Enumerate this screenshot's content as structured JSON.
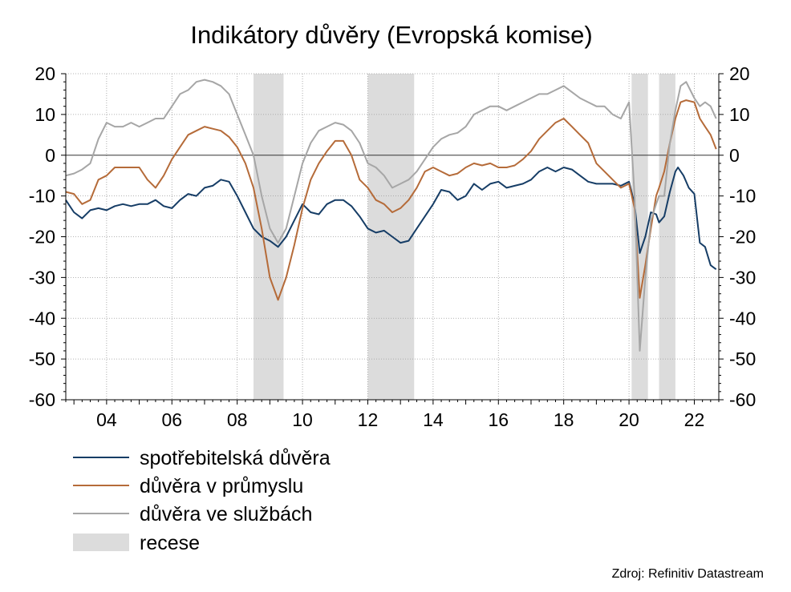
{
  "chart_data": {
    "type": "line",
    "title": "Indikátory důvěry (Evropská komise)",
    "source": "Zdroj: Refinitiv Datastream",
    "xlim": [
      2002.75,
      2022.75
    ],
    "ylim": [
      -60,
      20
    ],
    "yticks": [
      20,
      10,
      0,
      -10,
      -20,
      -30,
      -40,
      -50,
      -60
    ],
    "ytick_labels": [
      "20",
      "10",
      "0",
      "-10",
      "-20",
      "-30",
      "-40",
      "-50",
      "-60"
    ],
    "xticks": [
      2004,
      2006,
      2008,
      2010,
      2012,
      2014,
      2016,
      2018,
      2020,
      2022
    ],
    "xtick_labels": [
      "04",
      "06",
      "08",
      "10",
      "12",
      "14",
      "16",
      "18",
      "20",
      "22"
    ],
    "grid": true,
    "legend_position": "bottom-left",
    "recessions": [
      {
        "start": 2008.5,
        "end": 2009.42
      },
      {
        "start": 2012.0,
        "end": 2013.42
      },
      {
        "start": 2020.08,
        "end": 2020.58
      },
      {
        "start": 2020.92,
        "end": 2021.42
      }
    ],
    "series": [
      {
        "name": "spotřebitelská důvěra",
        "color": "#163d66",
        "points": [
          [
            2002.75,
            -11
          ],
          [
            2003.0,
            -14
          ],
          [
            2003.25,
            -15.5
          ],
          [
            2003.5,
            -13.5
          ],
          [
            2003.75,
            -13
          ],
          [
            2004.0,
            -13.5
          ],
          [
            2004.25,
            -12.5
          ],
          [
            2004.5,
            -12
          ],
          [
            2004.75,
            -12.5
          ],
          [
            2005.0,
            -12
          ],
          [
            2005.25,
            -12
          ],
          [
            2005.5,
            -11
          ],
          [
            2005.75,
            -12.5
          ],
          [
            2006.0,
            -13
          ],
          [
            2006.25,
            -11
          ],
          [
            2006.5,
            -9.5
          ],
          [
            2006.75,
            -10
          ],
          [
            2007.0,
            -8
          ],
          [
            2007.25,
            -7.5
          ],
          [
            2007.5,
            -6
          ],
          [
            2007.75,
            -6.5
          ],
          [
            2008.0,
            -10
          ],
          [
            2008.25,
            -14
          ],
          [
            2008.5,
            -18
          ],
          [
            2008.75,
            -20
          ],
          [
            2009.0,
            -21
          ],
          [
            2009.25,
            -22.5
          ],
          [
            2009.5,
            -20
          ],
          [
            2009.75,
            -16
          ],
          [
            2010.0,
            -12
          ],
          [
            2010.25,
            -14
          ],
          [
            2010.5,
            -14.5
          ],
          [
            2010.75,
            -12
          ],
          [
            2011.0,
            -11
          ],
          [
            2011.25,
            -11
          ],
          [
            2011.5,
            -12.5
          ],
          [
            2011.75,
            -15
          ],
          [
            2012.0,
            -18
          ],
          [
            2012.25,
            -19
          ],
          [
            2012.5,
            -18.5
          ],
          [
            2012.75,
            -20
          ],
          [
            2013.0,
            -21.5
          ],
          [
            2013.25,
            -21
          ],
          [
            2013.5,
            -18
          ],
          [
            2013.75,
            -15
          ],
          [
            2014.0,
            -12
          ],
          [
            2014.25,
            -8.5
          ],
          [
            2014.5,
            -9
          ],
          [
            2014.75,
            -11
          ],
          [
            2015.0,
            -10
          ],
          [
            2015.25,
            -7
          ],
          [
            2015.5,
            -8.5
          ],
          [
            2015.75,
            -7
          ],
          [
            2016.0,
            -6.5
          ],
          [
            2016.25,
            -8
          ],
          [
            2016.5,
            -7.5
          ],
          [
            2016.75,
            -7
          ],
          [
            2017.0,
            -6
          ],
          [
            2017.25,
            -4
          ],
          [
            2017.5,
            -3
          ],
          [
            2017.75,
            -4
          ],
          [
            2018.0,
            -3
          ],
          [
            2018.25,
            -3.5
          ],
          [
            2018.5,
            -5
          ],
          [
            2018.75,
            -6.5
          ],
          [
            2019.0,
            -7
          ],
          [
            2019.25,
            -7
          ],
          [
            2019.5,
            -7
          ],
          [
            2019.75,
            -7.5
          ],
          [
            2020.0,
            -6.5
          ],
          [
            2020.17,
            -12
          ],
          [
            2020.33,
            -24
          ],
          [
            2020.5,
            -20
          ],
          [
            2020.67,
            -14
          ],
          [
            2020.83,
            -14.5
          ],
          [
            2020.92,
            -16.5
          ],
          [
            2021.08,
            -15
          ],
          [
            2021.25,
            -9
          ],
          [
            2021.42,
            -4
          ],
          [
            2021.5,
            -3
          ],
          [
            2021.67,
            -5
          ],
          [
            2021.83,
            -8
          ],
          [
            2022.0,
            -9.5
          ],
          [
            2022.17,
            -21.5
          ],
          [
            2022.33,
            -22.5
          ],
          [
            2022.5,
            -27
          ],
          [
            2022.67,
            -28
          ]
        ]
      },
      {
        "name": "důvěra v průmyslu",
        "color": "#b56b39",
        "points": [
          [
            2002.75,
            -9
          ],
          [
            2003.0,
            -9.5
          ],
          [
            2003.25,
            -12
          ],
          [
            2003.5,
            -11
          ],
          [
            2003.75,
            -6
          ],
          [
            2004.0,
            -5
          ],
          [
            2004.25,
            -3
          ],
          [
            2004.5,
            -3
          ],
          [
            2004.75,
            -3
          ],
          [
            2005.0,
            -3
          ],
          [
            2005.25,
            -6
          ],
          [
            2005.5,
            -8
          ],
          [
            2005.75,
            -5
          ],
          [
            2006.0,
            -1
          ],
          [
            2006.25,
            2
          ],
          [
            2006.5,
            5
          ],
          [
            2006.75,
            6
          ],
          [
            2007.0,
            7
          ],
          [
            2007.25,
            6.5
          ],
          [
            2007.5,
            6
          ],
          [
            2007.75,
            4.5
          ],
          [
            2008.0,
            2
          ],
          [
            2008.25,
            -2
          ],
          [
            2008.5,
            -8
          ],
          [
            2008.75,
            -18
          ],
          [
            2009.0,
            -30
          ],
          [
            2009.25,
            -35.5
          ],
          [
            2009.5,
            -30
          ],
          [
            2009.75,
            -22
          ],
          [
            2010.0,
            -13
          ],
          [
            2010.25,
            -6
          ],
          [
            2010.5,
            -2
          ],
          [
            2010.75,
            1
          ],
          [
            2011.0,
            3.5
          ],
          [
            2011.25,
            3.5
          ],
          [
            2011.5,
            0
          ],
          [
            2011.75,
            -6
          ],
          [
            2012.0,
            -8
          ],
          [
            2012.25,
            -11
          ],
          [
            2012.5,
            -12
          ],
          [
            2012.75,
            -14
          ],
          [
            2013.0,
            -13
          ],
          [
            2013.25,
            -11
          ],
          [
            2013.5,
            -8
          ],
          [
            2013.75,
            -4
          ],
          [
            2014.0,
            -3
          ],
          [
            2014.25,
            -4
          ],
          [
            2014.5,
            -5
          ],
          [
            2014.75,
            -4.5
          ],
          [
            2015.0,
            -3
          ],
          [
            2015.25,
            -2
          ],
          [
            2015.5,
            -2.5
          ],
          [
            2015.75,
            -2
          ],
          [
            2016.0,
            -3
          ],
          [
            2016.25,
            -3
          ],
          [
            2016.5,
            -2.5
          ],
          [
            2016.75,
            -1
          ],
          [
            2017.0,
            1
          ],
          [
            2017.25,
            4
          ],
          [
            2017.5,
            6
          ],
          [
            2017.75,
            8
          ],
          [
            2018.0,
            9
          ],
          [
            2018.25,
            7
          ],
          [
            2018.5,
            5
          ],
          [
            2018.75,
            3
          ],
          [
            2019.0,
            -2
          ],
          [
            2019.25,
            -4
          ],
          [
            2019.5,
            -6
          ],
          [
            2019.75,
            -8
          ],
          [
            2020.0,
            -7
          ],
          [
            2020.17,
            -13
          ],
          [
            2020.33,
            -35
          ],
          [
            2020.5,
            -27
          ],
          [
            2020.67,
            -18
          ],
          [
            2020.83,
            -10
          ],
          [
            2020.92,
            -8
          ],
          [
            2021.08,
            -4
          ],
          [
            2021.25,
            3
          ],
          [
            2021.42,
            9
          ],
          [
            2021.58,
            13
          ],
          [
            2021.75,
            13.5
          ],
          [
            2022.0,
            13
          ],
          [
            2022.17,
            9
          ],
          [
            2022.33,
            7
          ],
          [
            2022.5,
            5
          ],
          [
            2022.67,
            1.5
          ]
        ]
      },
      {
        "name": "důvěra ve službách",
        "color": "#a6a6a6",
        "points": [
          [
            2002.75,
            -5
          ],
          [
            2003.0,
            -4.5
          ],
          [
            2003.25,
            -3.5
          ],
          [
            2003.5,
            -2
          ],
          [
            2003.75,
            4
          ],
          [
            2004.0,
            8
          ],
          [
            2004.25,
            7
          ],
          [
            2004.5,
            7
          ],
          [
            2004.75,
            8
          ],
          [
            2005.0,
            7
          ],
          [
            2005.25,
            8
          ],
          [
            2005.5,
            9
          ],
          [
            2005.75,
            9
          ],
          [
            2006.0,
            12
          ],
          [
            2006.25,
            15
          ],
          [
            2006.5,
            16
          ],
          [
            2006.75,
            18
          ],
          [
            2007.0,
            18.5
          ],
          [
            2007.25,
            18
          ],
          [
            2007.5,
            17
          ],
          [
            2007.75,
            15
          ],
          [
            2008.0,
            10
          ],
          [
            2008.25,
            5
          ],
          [
            2008.5,
            0
          ],
          [
            2008.75,
            -10
          ],
          [
            2009.0,
            -18
          ],
          [
            2009.25,
            -21.5
          ],
          [
            2009.5,
            -18
          ],
          [
            2009.75,
            -10
          ],
          [
            2010.0,
            -2
          ],
          [
            2010.25,
            3
          ],
          [
            2010.5,
            6
          ],
          [
            2010.75,
            7
          ],
          [
            2011.0,
            8
          ],
          [
            2011.25,
            7.5
          ],
          [
            2011.5,
            6
          ],
          [
            2011.75,
            3
          ],
          [
            2012.0,
            -2
          ],
          [
            2012.25,
            -3
          ],
          [
            2012.5,
            -5
          ],
          [
            2012.75,
            -8
          ],
          [
            2013.0,
            -7
          ],
          [
            2013.25,
            -6
          ],
          [
            2013.5,
            -4
          ],
          [
            2013.75,
            -1
          ],
          [
            2014.0,
            2
          ],
          [
            2014.25,
            4
          ],
          [
            2014.5,
            5
          ],
          [
            2014.75,
            5.5
          ],
          [
            2015.0,
            7
          ],
          [
            2015.25,
            10
          ],
          [
            2015.5,
            11
          ],
          [
            2015.75,
            12
          ],
          [
            2016.0,
            12
          ],
          [
            2016.25,
            11
          ],
          [
            2016.5,
            12
          ],
          [
            2016.75,
            13
          ],
          [
            2017.0,
            14
          ],
          [
            2017.25,
            15
          ],
          [
            2017.5,
            15
          ],
          [
            2017.75,
            16
          ],
          [
            2018.0,
            17
          ],
          [
            2018.25,
            15.5
          ],
          [
            2018.5,
            14
          ],
          [
            2018.75,
            13
          ],
          [
            2019.0,
            12
          ],
          [
            2019.25,
            12
          ],
          [
            2019.5,
            10
          ],
          [
            2019.75,
            9
          ],
          [
            2020.0,
            13
          ],
          [
            2020.17,
            -10
          ],
          [
            2020.33,
            -48
          ],
          [
            2020.5,
            -30
          ],
          [
            2020.67,
            -16
          ],
          [
            2020.83,
            -12
          ],
          [
            2020.92,
            -10
          ],
          [
            2021.08,
            -10
          ],
          [
            2021.25,
            3
          ],
          [
            2021.42,
            11
          ],
          [
            2021.58,
            17
          ],
          [
            2021.75,
            18
          ],
          [
            2022.0,
            14
          ],
          [
            2022.17,
            12
          ],
          [
            2022.33,
            13
          ],
          [
            2022.5,
            12
          ],
          [
            2022.67,
            9
          ]
        ]
      }
    ]
  },
  "legend": {
    "items": [
      {
        "label": "spotřebitelská důvěra",
        "kind": "line",
        "color": "#163d66"
      },
      {
        "label": "důvěra v průmyslu",
        "kind": "line",
        "color": "#b56b39"
      },
      {
        "label": "důvěra ve službách",
        "kind": "line",
        "color": "#a6a6a6"
      },
      {
        "label": "recese",
        "kind": "box",
        "color": "#dcdcdc"
      }
    ]
  }
}
